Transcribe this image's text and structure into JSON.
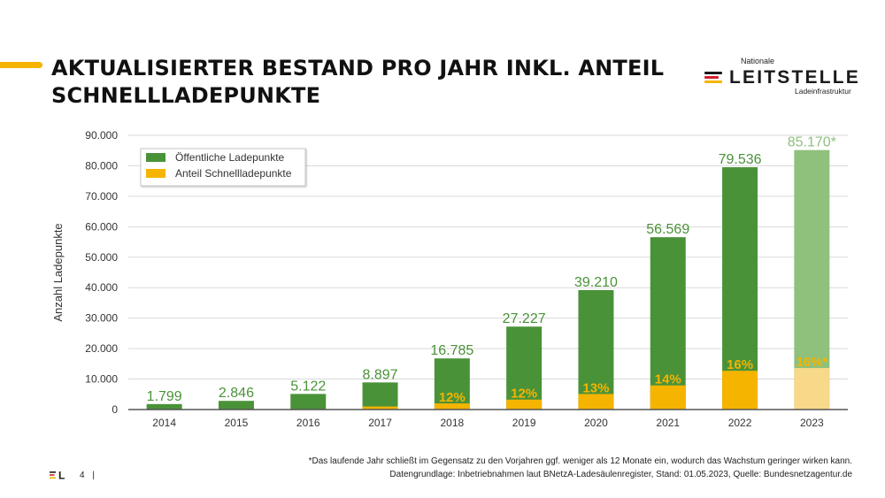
{
  "header": {
    "title_line1": "AKTUALISIERTER BESTAND PRO JAHR INKL. ANTEIL",
    "title_line2": "SCHNELLLADEPUNKTE"
  },
  "logo": {
    "top": "Nationale",
    "main": "LEITSTELLE",
    "bottom": "Ladeinfrastruktur",
    "footer_mark": "L"
  },
  "colors": {
    "accent": "#f5b400",
    "public": "#4a9238",
    "public_est": "#8fc07c",
    "fast": "#f5b400",
    "fast_est": "#f8d98a",
    "label_green": "#4a9238",
    "label_green_est": "#8fc07c",
    "label_yellow": "#f5b400"
  },
  "chart_data": {
    "type": "bar",
    "categories": [
      "2014",
      "2015",
      "2016",
      "2017",
      "2018",
      "2019",
      "2020",
      "2021",
      "2022",
      "2023"
    ],
    "series": [
      {
        "name": "Öffentliche Ladepunkte",
        "values": [
          1799,
          2846,
          5122,
          8897,
          16785,
          27227,
          39210,
          56569,
          79536,
          85170
        ],
        "labels": [
          "1.799",
          "2.846",
          "5.122",
          "8.897",
          "16.785",
          "27.227",
          "39.210",
          "56.569",
          "79.536",
          "85.170*"
        ]
      },
      {
        "name": "Anteil Schnellladepunkte",
        "values": [
          0,
          0,
          0,
          1000,
          2014,
          3267,
          5097,
          7920,
          12726,
          13627
        ],
        "labels": [
          "",
          "",
          "",
          "",
          "12%",
          "12%",
          "13%",
          "14%",
          "16%",
          "16%*"
        ]
      }
    ],
    "estimated_index": 9,
    "ylabel": "Anzahl Ladepunkte",
    "xlabel": "",
    "ylim": [
      0,
      90000
    ],
    "yticks": [
      0,
      10000,
      20000,
      30000,
      40000,
      50000,
      60000,
      70000,
      80000,
      90000
    ],
    "ytick_labels": [
      "0",
      "10.000",
      "20.000",
      "30.000",
      "40.000",
      "50.000",
      "60.000",
      "70.000",
      "80.000",
      "90.000"
    ],
    "grid": true,
    "legend": "top-left"
  },
  "footer": {
    "footnote_line1": "*Das laufende Jahr schließt im Gegensatz zu den Vorjahren ggf. weniger als 12 Monate ein, wodurch das Wachstum geringer wirken kann.",
    "footnote_line2": "Datengrundlage: Inbetriebnahmen laut BNetzA-Ladesäulenregister, Stand: 01.05.2023, Quelle: Bundesnetzagentur.de",
    "page_number": "4",
    "separator": "|"
  }
}
